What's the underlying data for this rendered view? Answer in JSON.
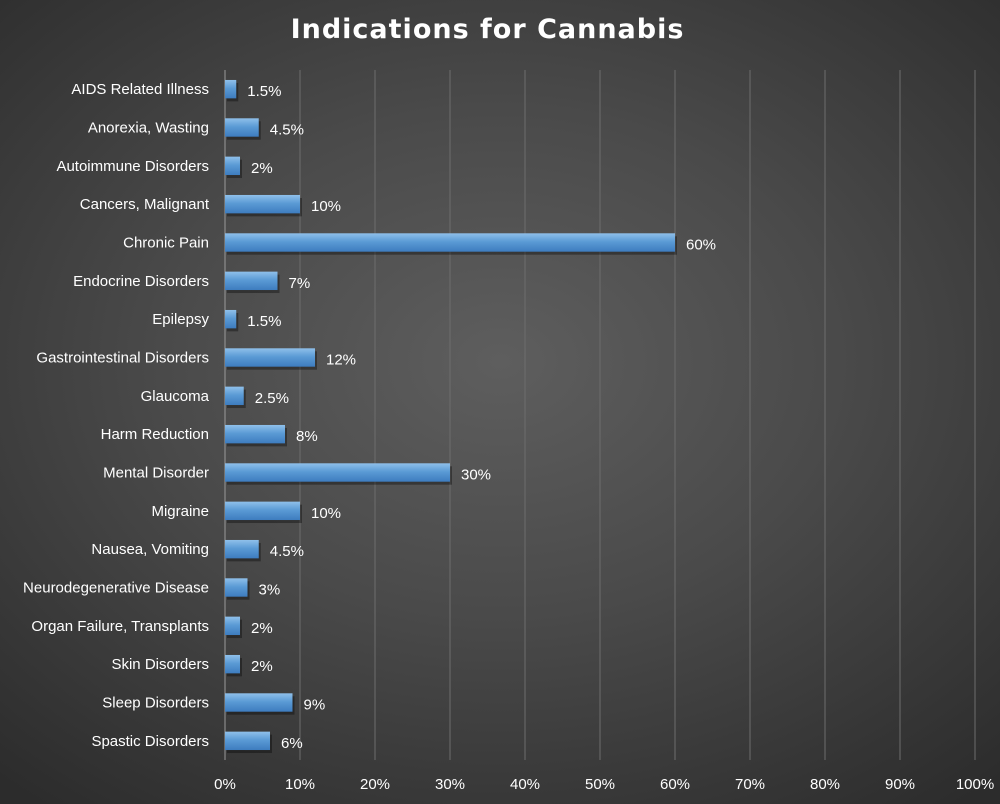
{
  "chart_data": {
    "type": "bar",
    "orientation": "horizontal",
    "title": "Indications for Cannabis",
    "xlabel": "",
    "ylabel": "",
    "categories": [
      "AIDS Related Illness",
      "Anorexia, Wasting",
      "Autoimmune Disorders",
      "Cancers, Malignant",
      "Chronic Pain",
      "Endocrine Disorders",
      "Epilepsy",
      "Gastrointestinal Disorders",
      "Glaucoma",
      "Harm Reduction",
      "Mental Disorder",
      "Migraine",
      "Nausea, Vomiting",
      "Neurodegenerative Disease",
      "Organ Failure, Transplants",
      "Skin Disorders",
      "Sleep Disorders",
      "Spastic Disorders"
    ],
    "values": [
      1.5,
      4.5,
      2,
      10,
      60,
      7,
      1.5,
      12,
      2.5,
      8,
      30,
      10,
      4.5,
      3,
      2,
      2,
      9,
      6
    ],
    "data_labels": [
      "1.5%",
      "4.5%",
      "2%",
      "10%",
      "60%",
      "7%",
      "1.5%",
      "12%",
      "2.5%",
      "8%",
      "30%",
      "10%",
      "4.5%",
      "3%",
      "2%",
      "2%",
      "9%",
      "6%"
    ],
    "xlim": [
      0,
      100
    ],
    "x_ticks": [
      "0%",
      "10%",
      "20%",
      "30%",
      "40%",
      "50%",
      "60%",
      "70%",
      "80%",
      "90%",
      "100%"
    ],
    "grid": true,
    "legend": "none",
    "bar_color": "#5b9bd5",
    "background_color": "#4a4a4a"
  }
}
